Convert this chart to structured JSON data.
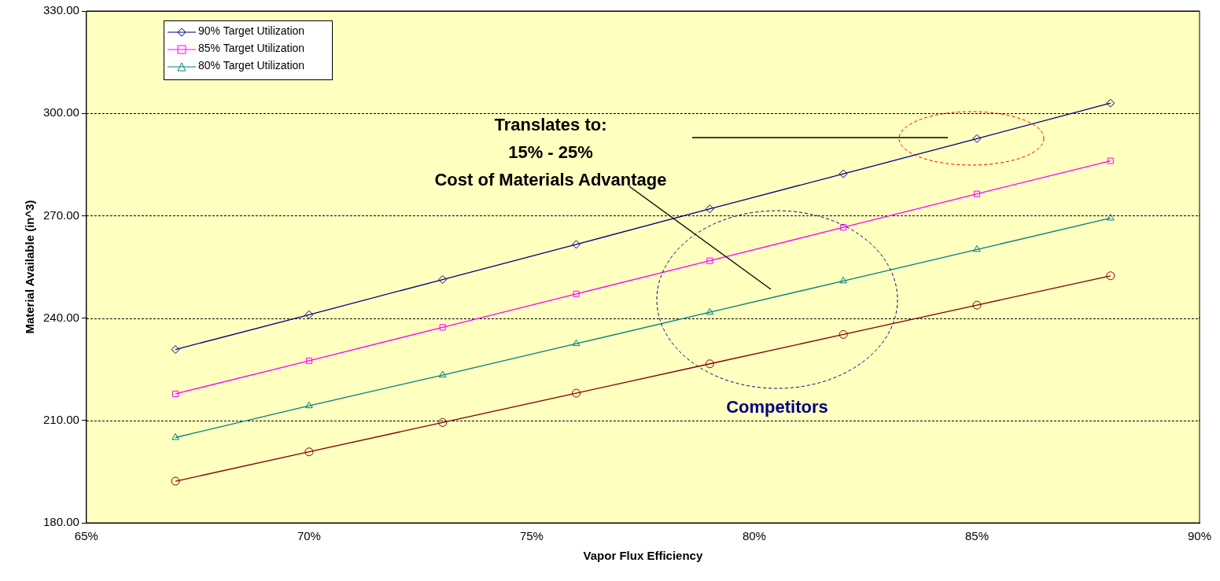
{
  "chart_data": {
    "type": "line",
    "xlabel": "Vapor Flux Efficiency",
    "ylabel": "Material Available (in^3)",
    "x": [
      67,
      70,
      73,
      76,
      79,
      82,
      85,
      88
    ],
    "series": [
      {
        "name": "90% Target Utilization",
        "color": "#000080",
        "marker": "diamond",
        "values": [
          230.8,
          241,
          251.3,
          261.6,
          272,
          282.3,
          292.6,
          303
        ]
      },
      {
        "name": "85% Target Utilization",
        "color": "#ff00ff",
        "marker": "square",
        "values": [
          217.8,
          227.5,
          237.3,
          247.1,
          256.8,
          266.6,
          276.4,
          286.1
        ]
      },
      {
        "name": "80% Target Utilization",
        "color": "#008080",
        "marker": "triangle",
        "values": [
          205,
          214.3,
          223.3,
          232.5,
          241.7,
          250.9,
          260.1,
          269.3
        ]
      },
      {
        "color": "#800000",
        "marker": "circle",
        "values": [
          192.2,
          200.8,
          209.4,
          218,
          226.6,
          235.2,
          243.8,
          252.4
        ]
      }
    ],
    "xlim": [
      65,
      90
    ],
    "xticks": [
      {
        "value": 65,
        "label": "65%"
      },
      {
        "value": 70,
        "label": "70%"
      },
      {
        "value": 75,
        "label": "75%"
      },
      {
        "value": 80,
        "label": "80%"
      },
      {
        "value": 85,
        "label": "85%"
      },
      {
        "value": 90,
        "label": "90%"
      }
    ],
    "ylim": [
      180,
      330
    ],
    "yticks": [
      {
        "value": 180,
        "label": "180.00"
      },
      {
        "value": 210,
        "label": "210.00"
      },
      {
        "value": 240,
        "label": "240.00"
      },
      {
        "value": 270,
        "label": "270.00"
      },
      {
        "value": 300,
        "label": "300.00"
      },
      {
        "value": 330,
        "label": "330.00"
      }
    ],
    "annotations": [
      "Translates to:\n15% - 25%\nCost of Materials Advantage",
      "Competitors"
    ],
    "grid": "y",
    "legend": "top left",
    "line_style": "solid"
  }
}
